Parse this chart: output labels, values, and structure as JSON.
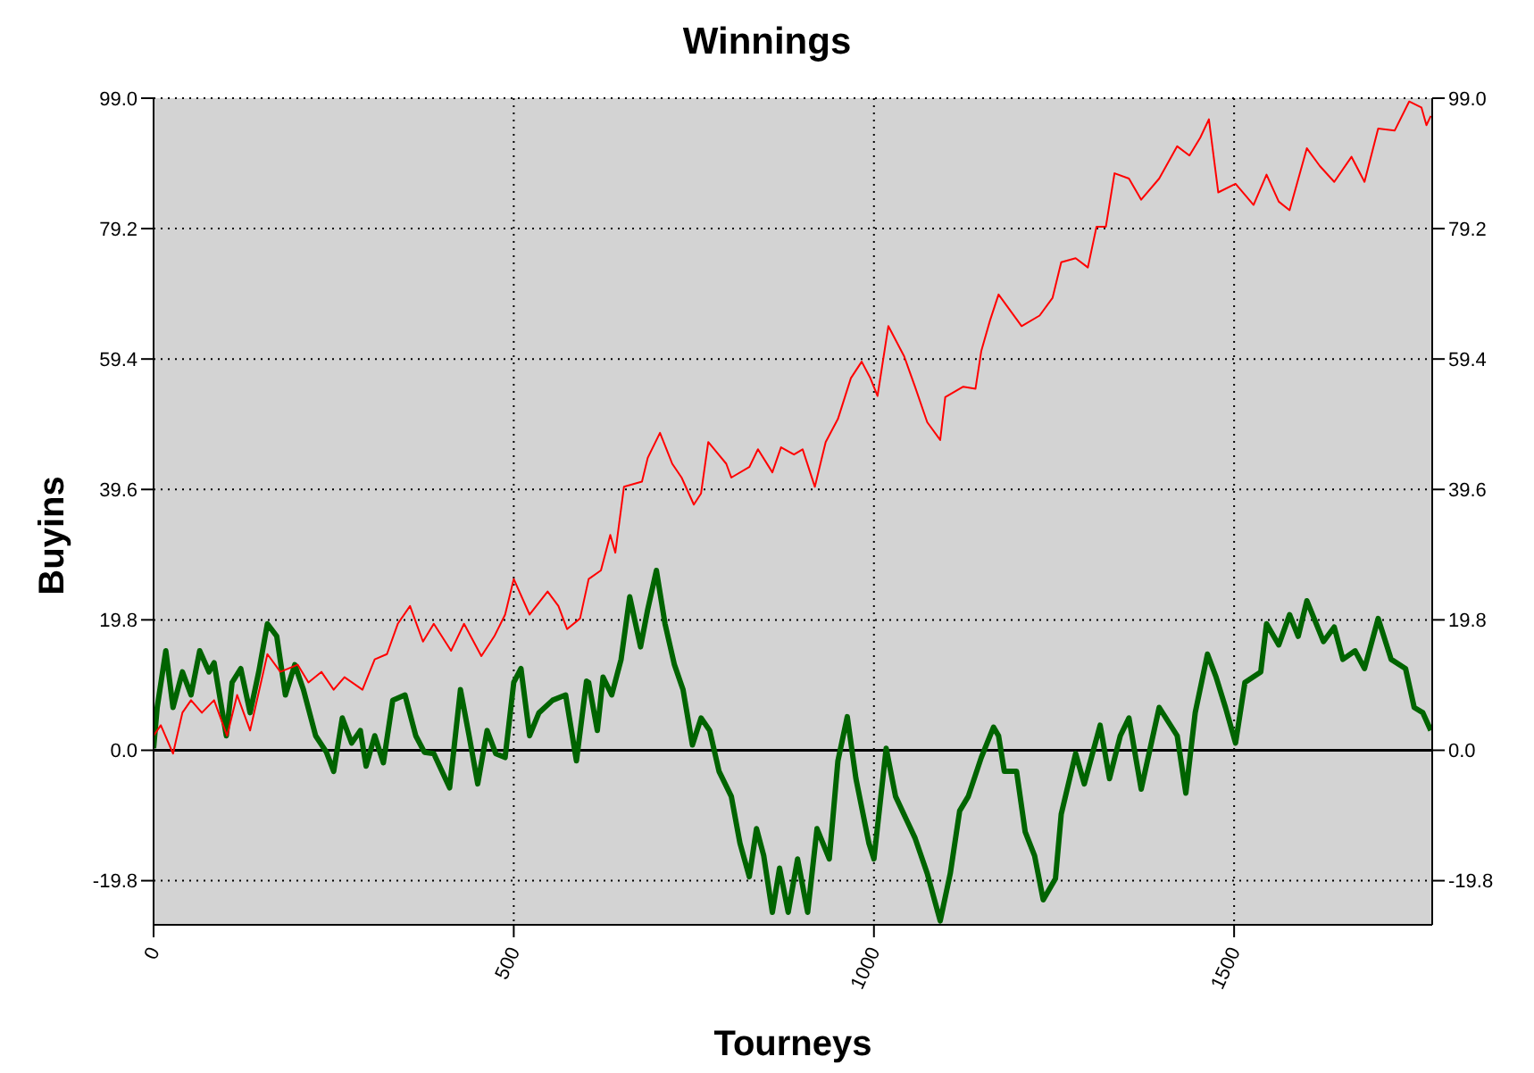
{
  "chart_data": {
    "type": "line",
    "title": "Winnings",
    "xlabel": "Tourneys",
    "ylabel": "Buyins",
    "xlim": [
      0,
      1775
    ],
    "xticks": [
      0,
      500,
      1000,
      1500
    ],
    "ylim": [
      -26.5,
      99
    ],
    "yticks": [
      {
        "value": -19.8,
        "label": "-19.8"
      },
      {
        "value": 0,
        "label": "0.0"
      },
      {
        "value": 19.8,
        "label": "19.8"
      },
      {
        "value": 39.6,
        "label": "39.6"
      },
      {
        "value": 59.4,
        "label": "59.4"
      },
      {
        "value": 79.2,
        "label": "79.2"
      },
      {
        "value": 99,
        "label": "99.0"
      }
    ],
    "y2lim": [
      -26.5,
      99
    ],
    "y2ticks": [
      {
        "value": -19.8,
        "label": "-19.8"
      },
      {
        "value": 0,
        "label": "0.0"
      },
      {
        "value": 19.8,
        "label": "19.8"
      },
      {
        "value": 39.6,
        "label": "39.6"
      },
      {
        "value": 59.4,
        "label": "59.4"
      },
      {
        "value": 79.2,
        "label": "79.2"
      },
      {
        "value": 99,
        "label": "99.0"
      }
    ],
    "grid": true,
    "marker": "none",
    "line_style": "solid",
    "ref_lines": [
      {
        "axis": "y",
        "value": 0,
        "color": "#000000",
        "line_style": "solid"
      }
    ],
    "series": [
      {
        "color": "#ff0000",
        "x": [
          0,
          10,
          27,
          40,
          52,
          67,
          84,
          102,
          116,
          134,
          158,
          176,
          200,
          215,
          233,
          250,
          265,
          290,
          307,
          324,
          339,
          356,
          374,
          389,
          413,
          431,
          455,
          473,
          488,
          500,
          522,
          547,
          562,
          574,
          592,
          604,
          621,
          634,
          641,
          653,
          678,
          686,
          703,
          720,
          733,
          750,
          760,
          770,
          795,
          802,
          827,
          839,
          859,
          871,
          889,
          901,
          918,
          933,
          950,
          968,
          983,
          995,
          1005,
          1020,
          1042,
          1057,
          1074,
          1092,
          1099,
          1124,
          1141,
          1149,
          1161,
          1173,
          1205,
          1230,
          1248,
          1260,
          1280,
          1297,
          1309,
          1322,
          1334,
          1354,
          1371,
          1396,
          1421,
          1438,
          1453,
          1465,
          1478,
          1502,
          1527,
          1545,
          1562,
          1577,
          1601,
          1619,
          1639,
          1663,
          1681,
          1700,
          1723,
          1743,
          1760,
          1767,
          1773
        ],
        "values": [
          2.2,
          3.8,
          -0.5,
          5.7,
          7.6,
          5.7,
          7.6,
          2.2,
          8.4,
          3.0,
          14.6,
          11.9,
          13.0,
          10.3,
          11.9,
          9.2,
          11.1,
          9.2,
          13.8,
          14.6,
          19.2,
          21.9,
          16.5,
          19.2,
          15.1,
          19.2,
          14.3,
          17.3,
          20.6,
          26.0,
          20.6,
          24.1,
          21.9,
          18.4,
          20.0,
          26.0,
          27.3,
          32.7,
          30.0,
          40.0,
          40.8,
          44.4,
          48.2,
          43.5,
          41.4,
          37.3,
          39.0,
          46.8,
          43.5,
          41.4,
          43.0,
          45.7,
          42.2,
          46.0,
          44.9,
          45.7,
          40.0,
          46.8,
          50.3,
          56.5,
          59.0,
          56.5,
          53.8,
          64.4,
          59.8,
          55.2,
          49.8,
          47.1,
          53.6,
          55.2,
          54.9,
          60.6,
          65.2,
          69.2,
          64.4,
          66.0,
          68.7,
          74.1,
          74.7,
          73.3,
          79.5,
          79.5,
          87.6,
          86.8,
          83.6,
          86.8,
          91.7,
          90.3,
          93.0,
          95.8,
          84.7,
          86.0,
          82.8,
          87.4,
          83.3,
          82.0,
          91.4,
          88.7,
          86.3,
          90.1,
          86.3,
          94.4,
          94.1,
          98.5,
          97.6,
          94.9,
          96.3
        ]
      },
      {
        "color": "#006400",
        "x": [
          0,
          5,
          17,
          27,
          40,
          52,
          64,
          77,
          84,
          101,
          109,
          121,
          134,
          146,
          158,
          171,
          183,
          196,
          208,
          225,
          240,
          250,
          262,
          275,
          287,
          295,
          307,
          319,
          332,
          349,
          364,
          376,
          389,
          411,
          426,
          438,
          450,
          463,
          475,
          488,
          500,
          510,
          522,
          535,
          554,
          572,
          587,
          601,
          604,
          616,
          624,
          636,
          649,
          661,
          676,
          686,
          698,
          710,
          723,
          735,
          748,
          760,
          772,
          785,
          802,
          814,
          827,
          837,
          847,
          859,
          869,
          881,
          894,
          908,
          921,
          938,
          950,
          963,
          975,
          993,
          1000,
          1017,
          1030,
          1045,
          1057,
          1074,
          1092,
          1106,
          1119,
          1131,
          1149,
          1166,
          1173,
          1181,
          1198,
          1210,
          1223,
          1235,
          1252,
          1260,
          1280,
          1292,
          1314,
          1327,
          1342,
          1354,
          1371,
          1396,
          1421,
          1433,
          1446,
          1463,
          1475,
          1488,
          1502,
          1515,
          1537,
          1545,
          1562,
          1577,
          1589,
          1601,
          1624,
          1639,
          1651,
          1668,
          1681,
          1700,
          1718,
          1738,
          1750,
          1762,
          1773
        ],
        "values": [
          0.3,
          6.5,
          15.1,
          6.5,
          11.9,
          8.4,
          15.1,
          11.9,
          13.3,
          2.2,
          10.3,
          12.4,
          5.7,
          11.9,
          19.2,
          17.3,
          8.4,
          13.0,
          9.2,
          2.2,
          -0.3,
          -3.2,
          4.9,
          1.1,
          3.0,
          -2.4,
          2.2,
          -1.9,
          7.6,
          8.4,
          2.2,
          -0.3,
          -0.5,
          -5.7,
          9.2,
          2.2,
          -5.1,
          3.0,
          -0.5,
          -1.1,
          10.3,
          12.4,
          2.2,
          5.7,
          7.6,
          8.4,
          -1.6,
          10.5,
          10.3,
          3.0,
          11.1,
          8.4,
          13.8,
          23.3,
          15.7,
          21.4,
          27.3,
          19.2,
          13.0,
          9.2,
          0.8,
          4.9,
          3.0,
          -3.2,
          -7.0,
          -14.1,
          -19.2,
          -11.9,
          -16.0,
          -24.6,
          -17.9,
          -24.6,
          -16.5,
          -24.6,
          -11.9,
          -16.5,
          -1.6,
          5.1,
          -4.3,
          -14.1,
          -16.5,
          0.3,
          -7.0,
          -10.5,
          -13.3,
          -18.7,
          -25.9,
          -18.7,
          -9.2,
          -7.0,
          -1.1,
          3.5,
          2.2,
          -3.2,
          -3.2,
          -12.4,
          -16.0,
          -22.7,
          -19.5,
          -9.7,
          -0.5,
          -5.1,
          3.8,
          -4.3,
          2.2,
          4.9,
          -5.9,
          6.5,
          2.2,
          -6.5,
          5.7,
          14.6,
          11.1,
          6.5,
          1.1,
          10.3,
          11.9,
          19.2,
          16.0,
          20.6,
          17.3,
          22.7,
          16.5,
          18.7,
          13.8,
          15.1,
          12.4,
          20.0,
          13.8,
          12.4,
          6.5,
          5.7,
          3.0
        ]
      }
    ]
  }
}
